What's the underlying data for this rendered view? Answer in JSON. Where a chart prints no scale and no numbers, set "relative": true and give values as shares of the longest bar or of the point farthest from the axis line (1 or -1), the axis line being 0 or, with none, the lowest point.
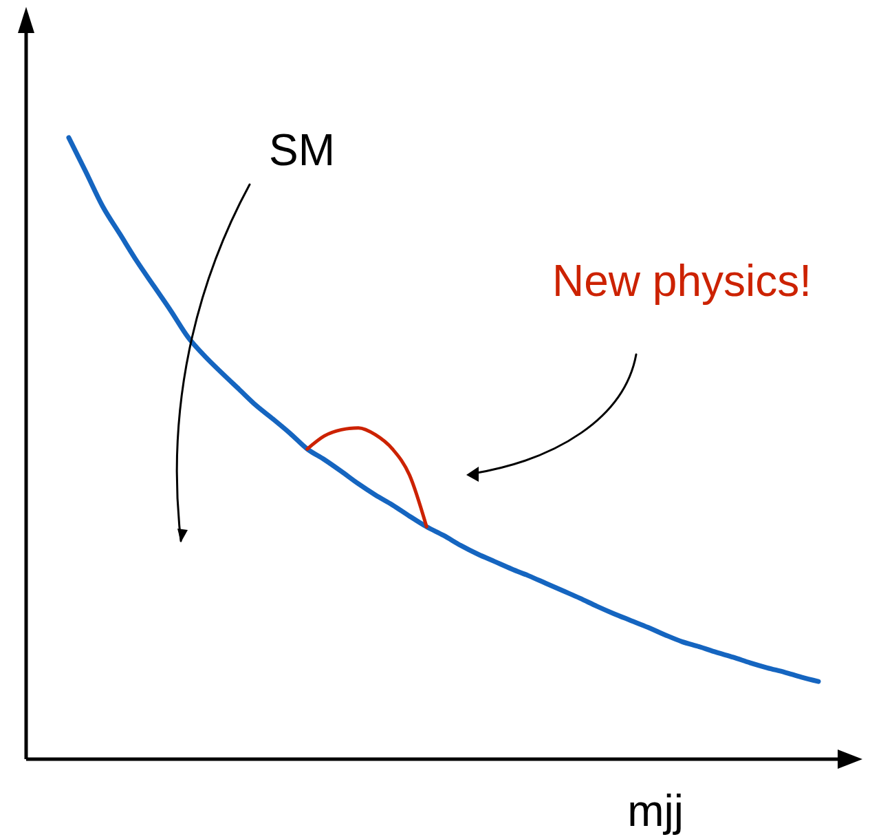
{
  "chart_data": {
    "type": "line",
    "relative": true,
    "xlabel": "mjj",
    "annotations": [
      "SM"
    ],
    "categories": [
      null,
      null,
      null,
      null,
      null,
      null,
      null,
      null,
      null,
      null,
      null,
      null,
      null,
      null,
      null,
      null,
      null,
      null,
      null,
      null,
      null,
      null,
      null,
      null,
      null,
      null,
      null,
      null,
      null,
      null,
      null,
      null,
      null,
      null,
      null,
      null,
      null,
      null,
      null,
      null,
      null,
      null,
      null,
      null,
      null
    ],
    "series": [
      {
        "color": "#1565c0",
        "values": [
          1,
          0.945,
          0.889,
          0.845,
          0.801,
          0.761,
          0.721,
          0.679,
          0.648,
          0.621,
          0.595,
          0.569,
          0.547,
          0.524,
          0.499,
          0.482,
          0.463,
          0.443,
          0.425,
          0.409,
          0.391,
          0.374,
          0.36,
          0.344,
          0.33,
          0.318,
          0.306,
          0.295,
          0.283,
          0.271,
          0.259,
          0.246,
          0.234,
          0.223,
          0.212,
          0.2,
          0.189,
          0.181,
          0.172,
          0.164,
          0.155,
          0.147,
          0.14,
          0.132,
          0.125
        ]
      },
      {
        "name": "New physics!",
        "color": "#cc2200",
        "values": [
          null,
          null,
          null,
          null,
          null,
          null,
          null,
          null,
          null,
          null,
          null,
          null,
          null,
          null,
          0.499,
          0.52,
          0.53,
          0.533,
          0.522,
          0.499,
          0.457,
          0.374,
          null,
          null,
          null,
          null,
          null,
          null,
          null,
          null,
          null,
          null,
          null,
          null,
          null,
          null,
          null,
          null,
          null,
          null,
          null,
          null,
          null,
          null,
          null
        ]
      }
    ]
  }
}
